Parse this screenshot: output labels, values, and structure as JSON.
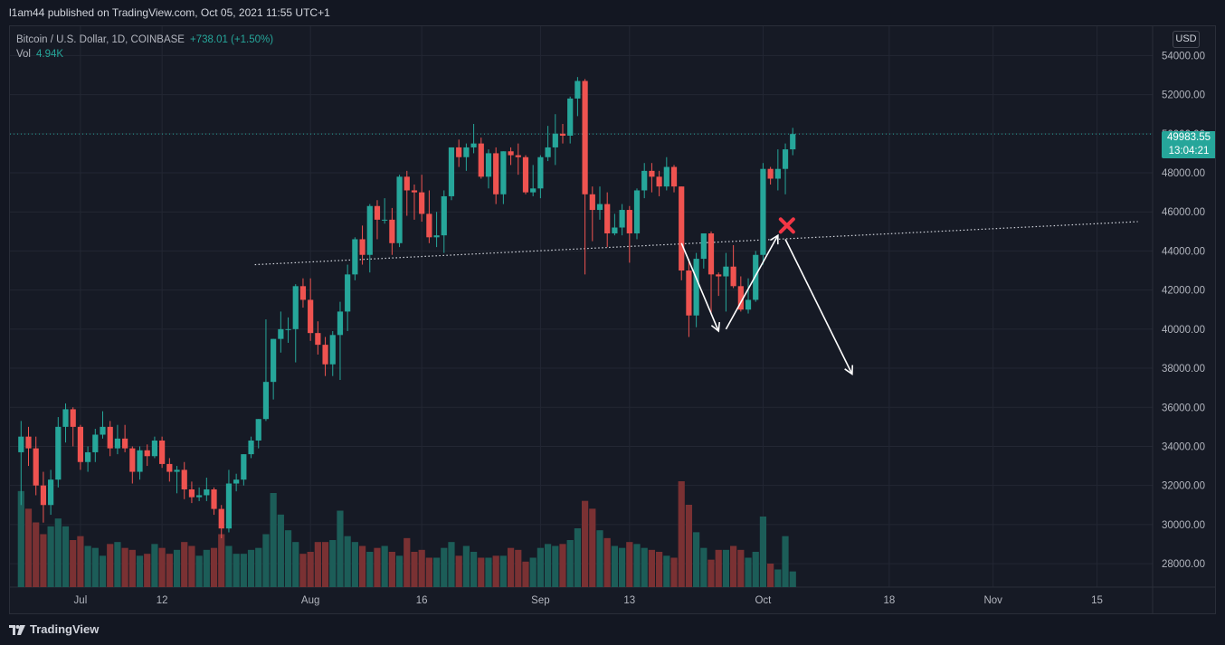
{
  "publisher_line": "l1am44 published on TradingView.com, Oct 05, 2021 11:55 UTC+1",
  "legend": {
    "symbol": "Bitcoin / U.S. Dollar, 1D, COINBASE",
    "change": "+738.01 (+1.50%)",
    "volume_label": "Vol",
    "volume_value": "4.94K"
  },
  "currency_button": "USD",
  "last_price": "49983.55",
  "countdown": "13:04:21",
  "footer_brand": "TradingView",
  "colors": {
    "up": "#26a69a",
    "down": "#ef5350",
    "up_volume": "#1c5d58",
    "down_volume": "#7a3133",
    "background": "#161a25",
    "grid": "#232733",
    "axis_text": "#b2b5be",
    "annotation": "#ffffff",
    "cross": "#f23645"
  },
  "chart_data": {
    "type": "candlestick",
    "y_axis": {
      "ticks": [
        "54000.00",
        "52000.00",
        "50000.00",
        "48000.00",
        "46000.00",
        "44000.00",
        "42000.00",
        "40000.00",
        "38000.00",
        "36000.00",
        "34000.00",
        "32000.00",
        "30000.00",
        "28000.00"
      ],
      "ylim": [
        26800,
        55500
      ]
    },
    "x_axis": {
      "ticks": [
        "Jul",
        "12",
        "Aug",
        "16",
        "Sep",
        "13",
        "Oct",
        "18",
        "Nov",
        "15"
      ],
      "range": [
        "2021-06-22",
        "2021-11-23"
      ]
    },
    "candles": [
      [
        "2021-06-23",
        33700,
        35300,
        31000,
        34500
      ],
      [
        "2021-06-24",
        34500,
        35000,
        33000,
        33900
      ],
      [
        "2021-06-25",
        33900,
        34500,
        31500,
        32000
      ],
      [
        "2021-06-26",
        32000,
        32700,
        30100,
        31000
      ],
      [
        "2021-06-27",
        31000,
        32800,
        30500,
        32300
      ],
      [
        "2021-06-28",
        32300,
        35500,
        31900,
        35000
      ],
      [
        "2021-06-29",
        35000,
        36200,
        34200,
        35900
      ],
      [
        "2021-06-30",
        35900,
        36000,
        34000,
        35000
      ],
      [
        "2021-07-01",
        35000,
        35100,
        32800,
        33200
      ],
      [
        "2021-07-02",
        33200,
        34000,
        32700,
        33700
      ],
      [
        "2021-07-03",
        33700,
        34900,
        33200,
        34600
      ],
      [
        "2021-07-04",
        34600,
        35800,
        34400,
        35000
      ],
      [
        "2021-07-05",
        35000,
        35300,
        33500,
        33900
      ],
      [
        "2021-07-06",
        33900,
        35100,
        33600,
        34400
      ],
      [
        "2021-07-07",
        34400,
        35100,
        33700,
        33900
      ],
      [
        "2021-07-08",
        33900,
        34000,
        32100,
        32700
      ],
      [
        "2021-07-09",
        32700,
        34000,
        32300,
        33800
      ],
      [
        "2021-07-10",
        33800,
        34100,
        33000,
        33500
      ],
      [
        "2021-07-11",
        33500,
        34500,
        33400,
        34300
      ],
      [
        "2021-07-12",
        34300,
        34500,
        32900,
        33100
      ],
      [
        "2021-07-13",
        33100,
        33400,
        32200,
        32700
      ],
      [
        "2021-07-14",
        32700,
        33000,
        31600,
        32800
      ],
      [
        "2021-07-15",
        32800,
        33200,
        31300,
        31800
      ],
      [
        "2021-07-16",
        31800,
        32200,
        31100,
        31400
      ],
      [
        "2021-07-17",
        31400,
        31900,
        31200,
        31500
      ],
      [
        "2021-07-18",
        31500,
        32400,
        31200,
        31800
      ],
      [
        "2021-07-19",
        31800,
        31900,
        30500,
        30800
      ],
      [
        "2021-07-20",
        30800,
        31000,
        29300,
        29800
      ],
      [
        "2021-07-21",
        29800,
        32800,
        29600,
        32100
      ],
      [
        "2021-07-22",
        32100,
        32600,
        31700,
        32300
      ],
      [
        "2021-07-23",
        32300,
        33600,
        32000,
        33600
      ],
      [
        "2021-07-24",
        33600,
        34500,
        33400,
        34300
      ],
      [
        "2021-07-25",
        34300,
        35400,
        33900,
        35400
      ],
      [
        "2021-07-26",
        35400,
        40500,
        35300,
        37300
      ],
      [
        "2021-07-27",
        37300,
        39500,
        36400,
        39500
      ],
      [
        "2021-07-28",
        39500,
        40900,
        38800,
        40000
      ],
      [
        "2021-07-29",
        40000,
        40600,
        39300,
        40000
      ],
      [
        "2021-07-30",
        40000,
        42300,
        38300,
        42200
      ],
      [
        "2021-07-31",
        42200,
        42600,
        41100,
        41500
      ],
      [
        "2021-08-01",
        41500,
        42600,
        39400,
        39800
      ],
      [
        "2021-08-02",
        39800,
        40400,
        38700,
        39200
      ],
      [
        "2021-08-03",
        39200,
        39600,
        37600,
        38200
      ],
      [
        "2021-08-04",
        38200,
        39900,
        37600,
        39700
      ],
      [
        "2021-08-05",
        39700,
        41400,
        37400,
        40900
      ],
      [
        "2021-08-06",
        40900,
        43300,
        39900,
        42800
      ],
      [
        "2021-08-07",
        42800,
        44700,
        42500,
        44600
      ],
      [
        "2021-08-08",
        44600,
        45300,
        43300,
        43800
      ],
      [
        "2021-08-09",
        43800,
        46400,
        42900,
        46300
      ],
      [
        "2021-08-10",
        46300,
        46600,
        44600,
        45600
      ],
      [
        "2021-08-11",
        45600,
        46700,
        45400,
        45600
      ],
      [
        "2021-08-12",
        45600,
        46200,
        43800,
        44400
      ],
      [
        "2021-08-13",
        44400,
        47900,
        44200,
        47800
      ],
      [
        "2021-08-14",
        47800,
        48100,
        45800,
        47100
      ],
      [
        "2021-08-15",
        47100,
        47400,
        45600,
        47000
      ],
      [
        "2021-08-16",
        47000,
        47900,
        45500,
        45900
      ],
      [
        "2021-08-17",
        45900,
        47100,
        44400,
        44700
      ],
      [
        "2021-08-18",
        44700,
        46000,
        44200,
        44800
      ],
      [
        "2021-08-19",
        44800,
        47100,
        43900,
        46800
      ],
      [
        "2021-08-20",
        46800,
        49300,
        46600,
        49300
      ],
      [
        "2021-08-21",
        49300,
        49700,
        48300,
        48800
      ],
      [
        "2021-08-22",
        48800,
        49500,
        48100,
        49300
      ],
      [
        "2021-08-23",
        49300,
        50500,
        49000,
        49500
      ],
      [
        "2021-08-24",
        49500,
        49800,
        47700,
        47800
      ],
      [
        "2021-08-25",
        47800,
        49200,
        47200,
        49000
      ],
      [
        "2021-08-26",
        49000,
        49300,
        46400,
        46900
      ],
      [
        "2021-08-27",
        46900,
        49100,
        46400,
        49100
      ],
      [
        "2021-08-28",
        49100,
        49300,
        48400,
        48900
      ],
      [
        "2021-08-29",
        48900,
        49500,
        47900,
        48800
      ],
      [
        "2021-08-30",
        48800,
        48900,
        46900,
        47000
      ],
      [
        "2021-08-31",
        47000,
        48400,
        46800,
        47200
      ],
      [
        "2021-09-01",
        47200,
        48900,
        46700,
        48800
      ],
      [
        "2021-09-02",
        48800,
        50400,
        48600,
        49300
      ],
      [
        "2021-09-03",
        49300,
        51000,
        48400,
        50000
      ],
      [
        "2021-09-04",
        50000,
        50500,
        49500,
        49900
      ],
      [
        "2021-09-05",
        49900,
        51900,
        49500,
        51800
      ],
      [
        "2021-09-06",
        51800,
        52900,
        50900,
        52700
      ],
      [
        "2021-09-07",
        52700,
        52800,
        42800,
        46900
      ],
      [
        "2021-09-08",
        46900,
        47300,
        44500,
        46100
      ],
      [
        "2021-09-09",
        46100,
        47300,
        45600,
        46400
      ],
      [
        "2021-09-10",
        46400,
        47000,
        44200,
        44900
      ],
      [
        "2021-09-11",
        44900,
        45900,
        44800,
        45200
      ],
      [
        "2021-09-12",
        45200,
        46400,
        44800,
        46100
      ],
      [
        "2021-09-13",
        46100,
        46300,
        43400,
        44900
      ],
      [
        "2021-09-14",
        44900,
        47200,
        44600,
        47100
      ],
      [
        "2021-09-15",
        47100,
        48500,
        46700,
        48100
      ],
      [
        "2021-09-16",
        48100,
        48500,
        47000,
        47800
      ],
      [
        "2021-09-17",
        47800,
        48100,
        46800,
        47300
      ],
      [
        "2021-09-18",
        47300,
        48800,
        47100,
        48300
      ],
      [
        "2021-09-19",
        48300,
        48400,
        47000,
        47300
      ],
      [
        "2021-09-20",
        47300,
        47300,
        42500,
        43000
      ],
      [
        "2021-09-21",
        43000,
        43600,
        39600,
        40700
      ],
      [
        "2021-09-22",
        40700,
        43900,
        40100,
        43600
      ],
      [
        "2021-09-23",
        43600,
        44900,
        43100,
        44900
      ],
      [
        "2021-09-24",
        44900,
        45000,
        40800,
        42800
      ],
      [
        "2021-09-25",
        42800,
        42900,
        41700,
        42700
      ],
      [
        "2021-09-26",
        42700,
        43900,
        40900,
        43200
      ],
      [
        "2021-09-27",
        43200,
        44300,
        42100,
        42200
      ],
      [
        "2021-09-28",
        42200,
        42700,
        40900,
        41000
      ],
      [
        "2021-09-29",
        41000,
        42600,
        40800,
        41500
      ],
      [
        "2021-09-30",
        41500,
        44000,
        41400,
        43800
      ],
      [
        "2021-10-01",
        43800,
        48500,
        43300,
        48200
      ],
      [
        "2021-10-02",
        48200,
        48300,
        47400,
        47700
      ],
      [
        "2021-10-03",
        47700,
        49200,
        47100,
        48200
      ],
      [
        "2021-10-04",
        48200,
        49500,
        46900,
        49200
      ],
      [
        "2021-10-05",
        49200,
        50300,
        48900,
        49983.55
      ]
    ],
    "volumes": [
      2.45,
      2.0,
      1.65,
      1.35,
      1.55,
      1.75,
      1.55,
      1.2,
      1.3,
      1.05,
      1.0,
      0.8,
      1.1,
      1.15,
      1.0,
      0.95,
      0.8,
      0.85,
      1.1,
      1.0,
      0.85,
      0.95,
      1.15,
      1.05,
      0.8,
      0.95,
      1.0,
      1.35,
      1.05,
      0.85,
      0.85,
      0.95,
      1.0,
      1.35,
      2.4,
      1.85,
      1.45,
      1.15,
      0.85,
      0.9,
      1.15,
      1.15,
      1.2,
      1.95,
      1.3,
      1.15,
      1.05,
      0.9,
      1.0,
      1.05,
      0.9,
      0.8,
      1.25,
      0.9,
      0.95,
      0.75,
      0.75,
      1.0,
      1.15,
      0.8,
      1.05,
      0.9,
      0.75,
      0.75,
      0.8,
      0.8,
      1.0,
      0.95,
      0.65,
      0.75,
      1.0,
      1.1,
      1.05,
      1.1,
      1.2,
      1.5,
      2.2,
      2.0,
      1.45,
      1.25,
      1.05,
      1.0,
      1.15,
      1.1,
      1.0,
      0.95,
      0.9,
      0.8,
      0.75,
      2.7,
      2.1,
      1.4,
      1.0,
      0.7,
      0.95,
      0.95,
      1.05,
      0.95,
      0.75,
      0.9,
      1.8,
      0.6,
      0.45,
      1.3,
      0.4
    ],
    "volume_scale_max": 2.7,
    "annotations": {
      "trendline": {
        "from": [
          "2021-07-25",
          43300
        ],
        "to": [
          "2021-11-21",
          45500
        ],
        "style": "dotted"
      },
      "last_price_line": 49983.55,
      "arrows": [
        {
          "from": [
            "2021-09-20",
            44400
          ],
          "to": [
            "2021-09-25",
            39900
          ]
        },
        {
          "from": [
            "2021-09-26",
            40000
          ],
          "to": [
            "2021-10-03",
            44800
          ]
        },
        {
          "from": [
            "2021-10-04",
            44600
          ],
          "to": [
            "2021-10-13",
            37700
          ]
        }
      ],
      "cross": [
        "2021-10-03",
        45300
      ]
    }
  }
}
